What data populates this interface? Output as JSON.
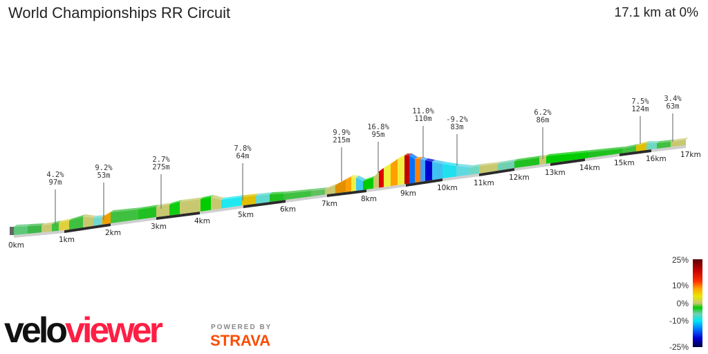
{
  "header": {
    "title": "World Championships RR Circuit",
    "summary": "17.1 km at 0%"
  },
  "chart_data": {
    "type": "area",
    "title": "World Championships RR Circuit",
    "xlabel": "",
    "ylabel": "",
    "x_unit": "km",
    "x_ticks": [
      "0km",
      "1km",
      "2km",
      "3km",
      "4km",
      "5km",
      "6km",
      "7km",
      "8km",
      "9km",
      "10km",
      "11km",
      "12km",
      "13km",
      "14km",
      "15km",
      "16km",
      "17km"
    ],
    "annotations": [
      {
        "grade": "4.2%",
        "length": "97m",
        "km": 0.9
      },
      {
        "grade": "9.2%",
        "length": "53m",
        "km": 1.85
      },
      {
        "grade": "2.7%",
        "length": "275m",
        "km": 3.1
      },
      {
        "grade": "7.8%",
        "length": "64m",
        "km": 5.0
      },
      {
        "grade": "9.9%",
        "length": "215m",
        "km": 7.4
      },
      {
        "grade": "16.8%",
        "length": "95m",
        "km": 8.3
      },
      {
        "grade": "11.0%",
        "length": "110m",
        "km": 9.3
      },
      {
        "grade": "-9.2%",
        "length": "83m",
        "km": 10.4
      },
      {
        "grade": "6.2%",
        "length": "86m",
        "km": 12.8
      },
      {
        "grade": "7.5%",
        "length": "124m",
        "km": 15.7
      },
      {
        "grade": "3.4%",
        "length": "63m",
        "km": 16.7
      }
    ],
    "legend": {
      "labels": [
        "25%",
        "10%",
        "0%",
        "-10%",
        "-25%"
      ],
      "colors": [
        "#5a0000",
        "#e00000",
        "#ff9900",
        "#e8e800",
        "#c8c870",
        "#00cc00",
        "#40e0d0",
        "#00e0ff",
        "#0060ff",
        "#0000d0",
        "#000050"
      ]
    }
  },
  "branding": {
    "veloviewer_a": "velo",
    "veloviewer_b": "viewer",
    "powered_by": "POWERED BY",
    "strava": "STRAVA"
  }
}
